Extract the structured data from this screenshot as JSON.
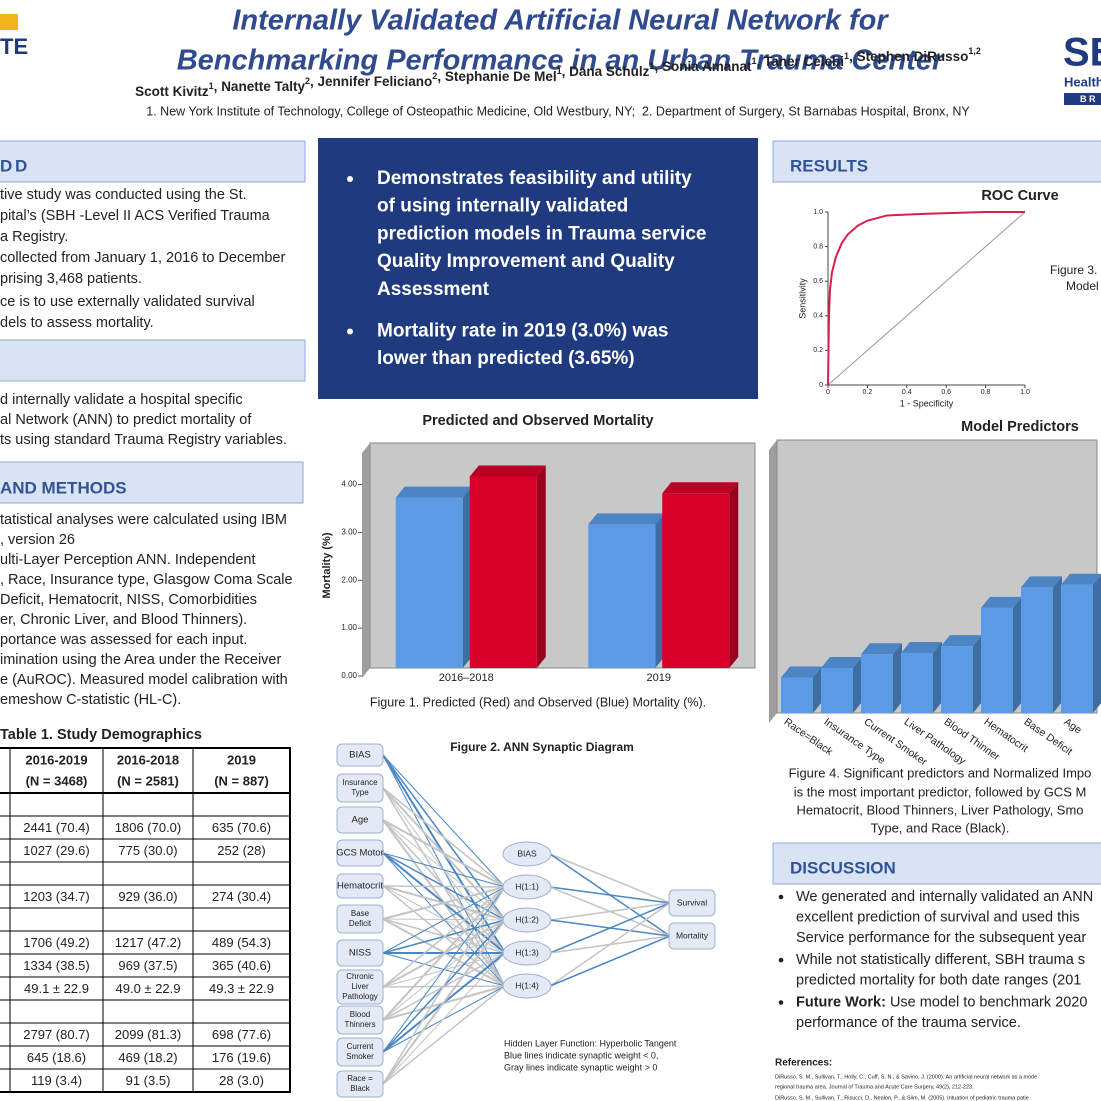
{
  "header": {
    "logo_left": "TE",
    "title": [
      "Internally Validated Artificial Neural Network for",
      "Benchmarking Performance in an Urban Trauma Center"
    ],
    "authors": [
      {
        "name": "Scott Kivitz",
        "aff": "1"
      },
      {
        "name": "Nanette Talty",
        "aff": "2"
      },
      {
        "name": "Jennifer Feliciano",
        "aff": "2"
      },
      {
        "name": "Stephanie De Mel",
        "aff": "1"
      },
      {
        "name": "Dana Schulz",
        "aff": "1"
      },
      {
        "name": "Sonia Amanat",
        "aff": "1"
      },
      {
        "name": "Taner Celebi",
        "aff": "1"
      },
      {
        "name": "Stephen DiRusso",
        "aff": "1,2"
      }
    ],
    "separator": ", ",
    "affiliations": "1. New York Institute of Technology, College of Osteopathic Medicine, Old Westbury, NY;  2. Department of Surgery, St Barnabas Hospital, Bronx, NY",
    "logo_right": {
      "text": "SB",
      "sub": "Health",
      "bar": "B R"
    }
  },
  "background": {
    "heading": "D",
    "lines": [
      "tive study was conducted using the St.",
      "pital’s (SBH -Level II ACS Verified Trauma",
      "a Registry.",
      "collected from January 1, 2016 to December",
      "prising 3,468 patients.",
      "ce is to use externally validated survival",
      "dels to assess mortality."
    ]
  },
  "objective": {
    "lines": [
      "d internally validate a hospital specific",
      "al Network (ANN) to predict mortality of",
      "ts using standard Trauma Registry variables."
    ]
  },
  "methods": {
    "heading": "AND METHODS",
    "lines": [
      "tatistical analyses were calculated using IBM",
      ", version 26",
      "ulti-Layer Perception ANN. Independent",
      ", Race, Insurance type, Glasgow Coma Scale",
      "Deficit, Hematocrit, NISS, Comorbidities",
      "er, Chronic Liver, and Blood Thinners).",
      "portance was assessed for each input.",
      "imination using the Area under the Receiver",
      "e (AuROC). Measured model calibration with",
      "emeshow C-statistic (HL-C)."
    ]
  },
  "table": {
    "title": "Table 1. Study Demographics",
    "header": [
      [
        "2016-2019",
        "(N = 3468)"
      ],
      [
        "2016-2018",
        "(N = 2581)"
      ],
      [
        "2019",
        "(N = 887)"
      ]
    ],
    "rows": [
      [
        "2441 (70.4)",
        "1806 (70.0)",
        "635 (70.6)"
      ],
      [
        "1027 (29.6)",
        "775 (30.0)",
        "252 (28)"
      ],
      [
        "1203 (34.7)",
        "929 (36.0)",
        "274 (30.4)"
      ],
      [
        "1706 (49.2)",
        "1217 (47.2)",
        "489 (54.3)"
      ],
      [
        "1334 (38.5)",
        "969 (37.5)",
        "365 (40.6)"
      ],
      [
        "49.1 ± 22.9",
        "49.0 ± 22.9",
        "49.3 ± 22.9"
      ],
      [
        "2797 (80.7)",
        "2099 (81.3)",
        "698 (77.6)"
      ],
      [
        "645 (18.6)",
        "469 (18.2)",
        "176 (19.6)"
      ],
      [
        "119 (3.4)",
        "91 (3.5)",
        "28 (3.0)"
      ]
    ]
  },
  "highlights": {
    "bullets": [
      [
        "Demonstrates feasibility and utility",
        "of using internally validated",
        "prediction models in Trauma service",
        "Quality Improvement and Quality",
        "Assessment"
      ],
      [
        "Mortality rate in 2019 (3.0%) was",
        "lower than predicted (3.65%)"
      ]
    ]
  },
  "mortality_chart": {
    "type": "bar",
    "title": "Predicted and Observed Mortality",
    "categories": [
      "2016–2018",
      "2019"
    ],
    "series": [
      {
        "color": "#5b9be6",
        "values": [
          3.56,
          3.0
        ]
      },
      {
        "color": "#d9002a",
        "values": [
          4.0,
          3.65
        ]
      }
    ],
    "ylim": [
      0,
      4.7
    ],
    "yticks": [
      {
        "value": 0,
        "label": "0.00"
      },
      {
        "value": 1,
        "label": "1.00"
      },
      {
        "value": 2,
        "label": "2.00"
      },
      {
        "value": 3,
        "label": "3.00"
      },
      {
        "value": 4,
        "label": "4.00"
      }
    ],
    "y_label": "Mortality (%)",
    "caption": "Figure 1. Predicted (Red) and Observed (Blue) Mortality (%)."
  },
  "ann": {
    "title": "Figure 2. ANN Synaptic Diagram",
    "inputs": [
      [
        "BIAS"
      ],
      [
        "Insurance",
        "Type"
      ],
      [
        "Age"
      ],
      [
        "GCS Motor"
      ],
      [
        "Hematocrit"
      ],
      [
        "Base",
        "Deficit"
      ],
      [
        "NISS"
      ],
      [
        "Chronic",
        "Liver",
        "Pathology"
      ],
      [
        "Blood",
        "Thinners"
      ],
      [
        "Current",
        "Smoker"
      ],
      [
        "Race =",
        "Black"
      ]
    ],
    "hidden": [
      "BIAS",
      "H(1:1)",
      "H(1:2)",
      "H(1:3)",
      "H(1:4)"
    ],
    "outputs": [
      "Survival",
      "Mortality"
    ],
    "notes": [
      "Hidden Layer Function: Hyperbolic Tangent",
      "Blue lines indicate synaptic weight < 0,",
      "Gray lines indicate synaptic weight > 0"
    ]
  },
  "results": {
    "heading": "RESULTS"
  },
  "roc_chart": {
    "type": "line",
    "title": "ROC Curve",
    "x": [
      0,
      0.005,
      0.01,
      0.02,
      0.04,
      0.07,
      0.1,
      0.15,
      0.2,
      0.3,
      0.5,
      0.8,
      1
    ],
    "values": [
      0,
      0.4,
      0.55,
      0.65,
      0.74,
      0.82,
      0.87,
      0.92,
      0.95,
      0.98,
      0.99,
      1,
      1
    ],
    "color": "#d6204c",
    "xlim": [
      0,
      1
    ],
    "ylim": [
      0,
      1
    ],
    "xticks": [
      0,
      0.2,
      0.4,
      0.6,
      0.8,
      {
        "value": 1,
        "label": "1.0"
      }
    ],
    "yticks": [
      0,
      0.2,
      0.4,
      0.6,
      0.8,
      {
        "value": 1,
        "label": "1.0"
      }
    ],
    "x_label": "1 - Specificity",
    "y_label": "Sensitivity"
  },
  "figure3": [
    "Figure 3.",
    "Model"
  ],
  "predictors_chart": {
    "type": "bar",
    "title": "Model Predictors",
    "categories": [
      "Race=Black",
      "Insurance Type",
      "Current Smoker",
      "Liver Pathology",
      "Blood Thinner",
      "Hematocrit",
      "Base Deficit",
      "Age"
    ],
    "values": [
      13,
      16.5,
      21.5,
      22,
      24.5,
      38.5,
      46,
      47
    ],
    "color": "#5b9be6",
    "ylim": [
      0,
      100
    ],
    "caption": [
      "Figure 4. Significant predictors and Normalized Impo",
      "is the most important predictor, followed by GCS M",
      "Hematocrit, Blood Thinners, Liver Pathology, Smo",
      "Type, and Race (Black)."
    ]
  },
  "discussion": {
    "heading": "DISCUSSION",
    "bullets": [
      {
        "lines": [
          "We generated and internally validated an ANN",
          "excellent prediction of survival and used this",
          "Service performance for the subsequent year"
        ]
      },
      {
        "lines": [
          "While not statistically different, SBH trauma s",
          "predicted mortality for both date ranges (201"
        ]
      },
      {
        "lead": "Future Work:",
        "lines": [
          "Use model to benchmark 2020",
          "performance of the trauma service."
        ]
      }
    ]
  },
  "references": {
    "heading": "References:",
    "lines": [
      "DiRusso, S. M., Sullivan, T., Holly, C., Cuff, S. N., & Savino, J. (2000). An artificial neural network as a mode",
      "regional trauma area. Journal of Trauma and Acute Care Surgery, 49(2), 212-223.",
      "DiRusso, S. M., Sullivan, T., Risucci, D., Nealon, P., & Slim, M. (2005). Intuation of pediatric trauma patie"
    ]
  }
}
